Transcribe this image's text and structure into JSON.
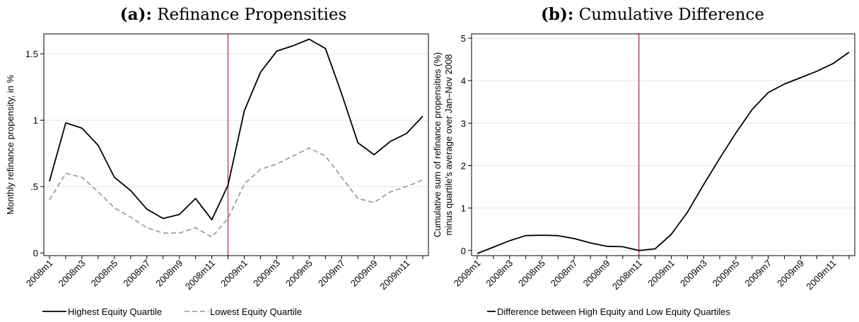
{
  "chart_data": [
    {
      "type": "line",
      "title_label": "(a):",
      "title": "Refinance Propensities",
      "xlabel": "",
      "ylabel": "Monthly refinance propensity, in %",
      "categories": [
        "2008m1",
        "2008m2",
        "2008m3",
        "2008m4",
        "2008m5",
        "2008m6",
        "2008m7",
        "2008m8",
        "2008m9",
        "2008m10",
        "2008m11",
        "2008m12",
        "2009m1",
        "2009m2",
        "2009m3",
        "2009m4",
        "2009m5",
        "2009m6",
        "2009m7",
        "2009m8",
        "2009m9",
        "2009m10",
        "2009m11",
        "2009m12"
      ],
      "x_tick_labels": [
        "2008m1",
        "2008m3",
        "2008m5",
        "2008m7",
        "2008m9",
        "2008m11",
        "2009m1",
        "2009m3",
        "2009m5",
        "2009m7",
        "2009m9",
        "2009m11"
      ],
      "y_ticks": [
        0,
        0.5,
        1,
        1.5
      ],
      "y_tick_labels": [
        "0",
        ".5",
        "1",
        "1.5"
      ],
      "ylim": [
        -0.02,
        1.65
      ],
      "vline_at": "2008m12",
      "vline_color": "#a8234f",
      "grid": true,
      "legend_position": "bottom",
      "series": [
        {
          "name": "Highest Equity Quartile",
          "style": "solid",
          "color": "#000000",
          "values": [
            0.54,
            0.98,
            0.94,
            0.81,
            0.57,
            0.47,
            0.33,
            0.26,
            0.29,
            0.41,
            0.25,
            0.51,
            1.07,
            1.36,
            1.52,
            1.56,
            1.61,
            1.54,
            1.2,
            0.83,
            0.74,
            0.84,
            0.9,
            1.03
          ]
        },
        {
          "name": "Lowest Equity Quartile",
          "style": "dashed",
          "color": "#a0a0a0",
          "values": [
            0.4,
            0.6,
            0.57,
            0.46,
            0.34,
            0.27,
            0.19,
            0.15,
            0.15,
            0.19,
            0.12,
            0.26,
            0.52,
            0.63,
            0.67,
            0.73,
            0.79,
            0.73,
            0.57,
            0.41,
            0.38,
            0.46,
            0.5,
            0.55
          ]
        }
      ]
    },
    {
      "type": "line",
      "title_label": "(b):",
      "title": "Cumulative Difference",
      "xlabel": "",
      "ylabel_lines": [
        "Cumulative sum of refinance propensities (%)",
        "minus quartile's average over Jan–Nov 2008"
      ],
      "categories": [
        "2008m1",
        "2008m2",
        "2008m3",
        "2008m4",
        "2008m5",
        "2008m6",
        "2008m7",
        "2008m8",
        "2008m9",
        "2008m10",
        "2008m11",
        "2008m12",
        "2009m1",
        "2009m2",
        "2009m3",
        "2009m4",
        "2009m5",
        "2009m6",
        "2009m7",
        "2009m8",
        "2009m9",
        "2009m10",
        "2009m11",
        "2009m12"
      ],
      "x_tick_labels": [
        "2008m1",
        "2008m3",
        "2008m5",
        "2008m7",
        "2008m9",
        "2008m11",
        "2009m1",
        "2009m3",
        "2009m5",
        "2009m7",
        "2009m9",
        "2009m11"
      ],
      "y_ticks": [
        0,
        1,
        2,
        3,
        4,
        5
      ],
      "y_tick_labels": [
        "0",
        "1",
        "2",
        "3",
        "4",
        "5"
      ],
      "ylim": [
        -0.12,
        5.1
      ],
      "vline_at": "2008m11",
      "vline_color": "#a8234f",
      "grid": true,
      "legend_position": "bottom",
      "series": [
        {
          "name": "Difference between High Equity and Low Equity Quartiles",
          "style": "solid",
          "color": "#000000",
          "values": [
            -0.07,
            0.08,
            0.23,
            0.35,
            0.36,
            0.35,
            0.28,
            0.18,
            0.1,
            0.09,
            0.0,
            0.04,
            0.38,
            0.9,
            1.55,
            2.17,
            2.77,
            3.32,
            3.72,
            3.92,
            4.07,
            4.22,
            4.4,
            4.67
          ]
        }
      ]
    }
  ]
}
